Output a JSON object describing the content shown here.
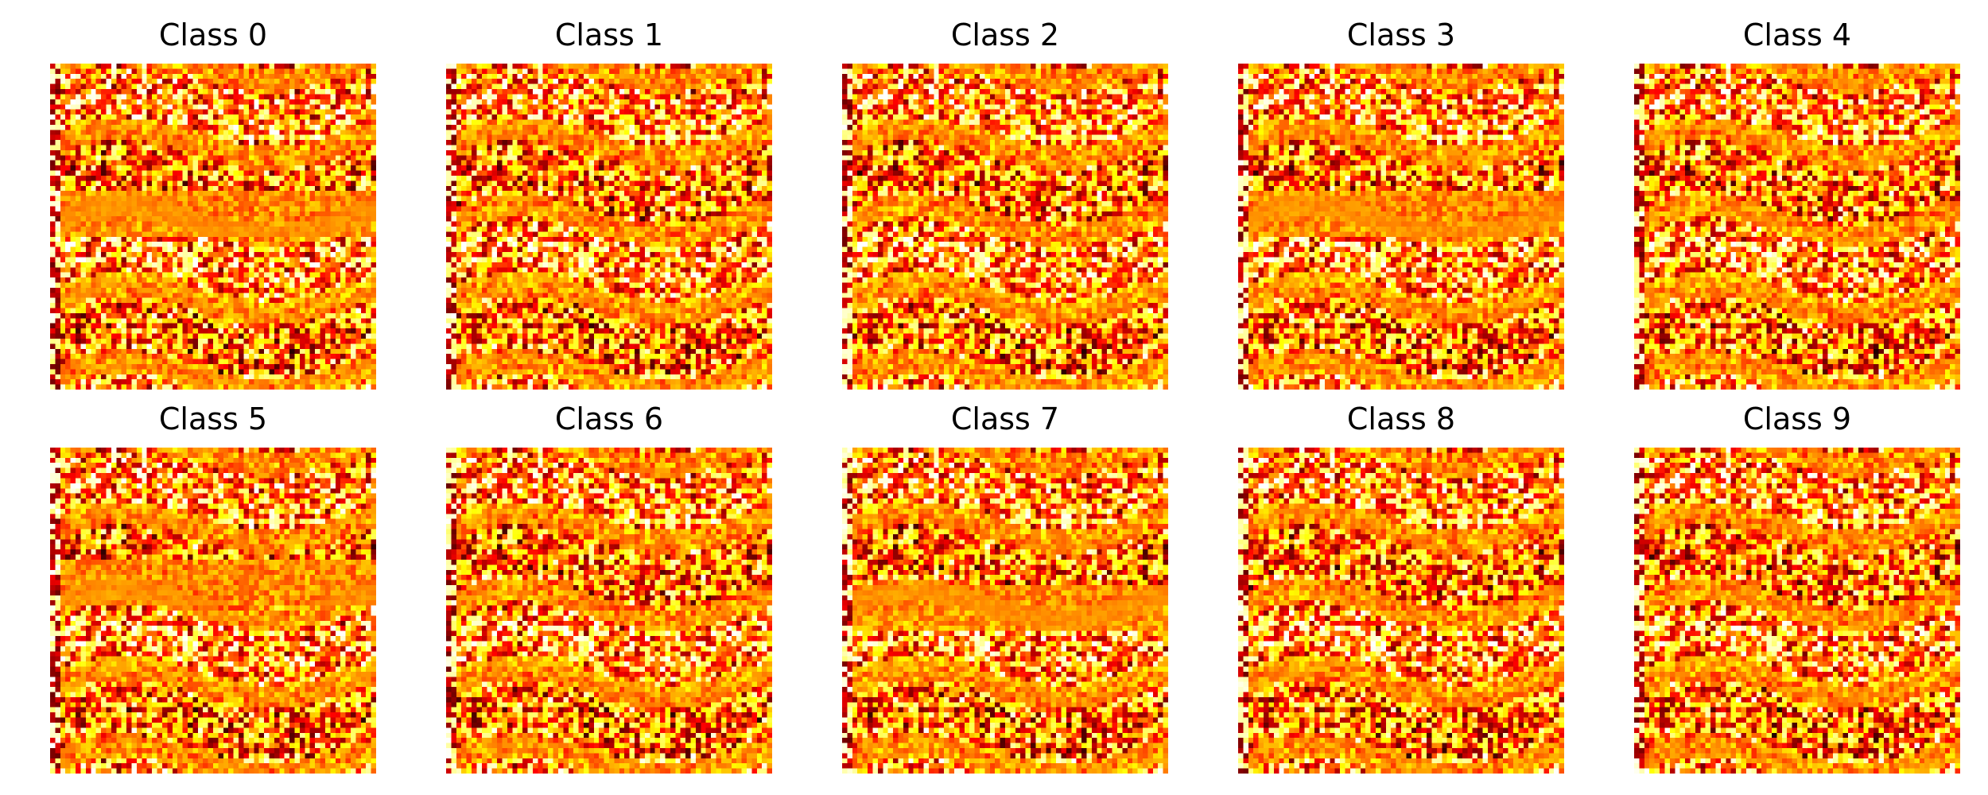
{
  "chart_data": {
    "type": "heatmap",
    "colormap": "hot",
    "grid": false,
    "axes_visible": false,
    "panels": [
      {
        "title": "Class 0"
      },
      {
        "title": "Class 1"
      },
      {
        "title": "Class 2"
      },
      {
        "title": "Class 3"
      },
      {
        "title": "Class 4"
      },
      {
        "title": "Class 5"
      },
      {
        "title": "Class 6"
      },
      {
        "title": "Class 7"
      },
      {
        "title": "Class 8"
      },
      {
        "title": "Class 9"
      }
    ]
  }
}
